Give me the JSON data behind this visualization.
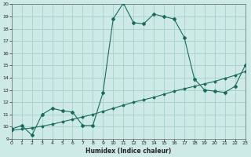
{
  "xlabel": "Humidex (Indice chaleur)",
  "bg_color": "#ceeae6",
  "grid_color": "#aad4ce",
  "line_color": "#1a6b5e",
  "x_min": 0,
  "x_max": 23,
  "y_min": 9,
  "y_max": 20,
  "curve1_x": [
    0,
    1,
    2,
    3,
    4,
    5,
    6,
    7,
    8,
    9,
    10,
    11,
    12,
    13,
    14,
    15,
    16,
    17,
    18,
    19,
    20,
    21,
    22,
    23
  ],
  "curve1_y": [
    9.8,
    10.1,
    9.3,
    11.0,
    11.5,
    11.3,
    11.2,
    10.1,
    10.1,
    12.8,
    18.8,
    20.1,
    18.5,
    18.4,
    19.2,
    19.0,
    18.8,
    17.3,
    13.9,
    13.0,
    12.9,
    12.8,
    13.3,
    15.0
  ],
  "curve2_x": [
    0,
    1,
    2,
    3,
    4,
    5,
    6,
    7,
    8,
    9,
    10,
    11,
    12,
    13,
    14,
    15,
    16,
    17,
    18,
    19,
    20,
    21,
    22,
    23
  ],
  "curve2_y": [
    9.7,
    9.8,
    9.9,
    10.05,
    10.2,
    10.4,
    10.6,
    10.8,
    11.0,
    11.25,
    11.5,
    11.75,
    12.0,
    12.2,
    12.4,
    12.65,
    12.9,
    13.1,
    13.3,
    13.5,
    13.7,
    13.95,
    14.2,
    14.5
  ]
}
